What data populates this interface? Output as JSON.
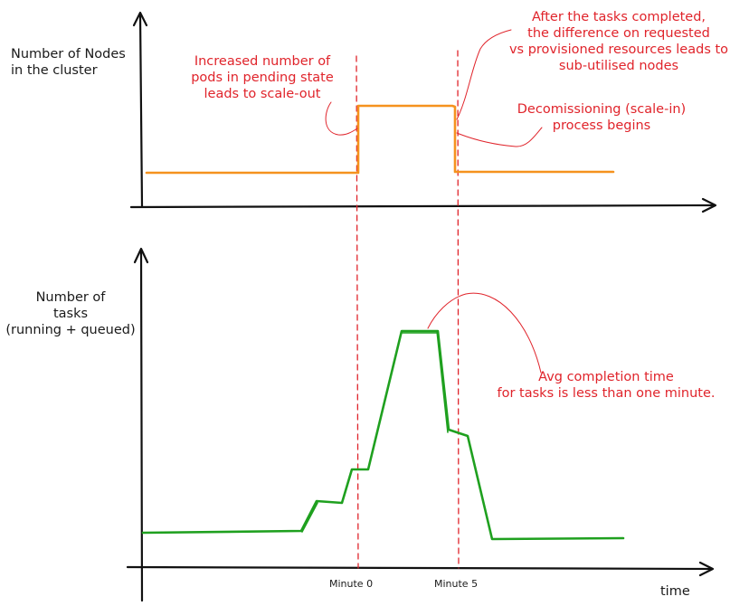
{
  "colors": {
    "axis": "#111111",
    "nodes_line": "#f5921e",
    "tasks_line": "#1fa01f",
    "annotation": "#e0242b"
  },
  "top_chart": {
    "ylabel_lines": [
      "Number of Nodes",
      "in the cluster"
    ],
    "annotation_scale_out": [
      "Increased number of",
      "pods in pending state",
      "leads to scale-out"
    ],
    "annotation_after_tasks": [
      "After the tasks completed,",
      "the difference on requested",
      "vs provisioned resources leads to",
      "sub-utilised nodes"
    ],
    "annotation_scale_in": [
      "Decomissioning (scale-in)",
      "process begins"
    ]
  },
  "bottom_chart": {
    "ylabel_lines": [
      "Number of",
      "tasks",
      "(running + queued)"
    ],
    "annotation_avg": [
      "Avg completion time",
      "for tasks is less than one minute."
    ],
    "tick_minute0": "Minute 0",
    "tick_minute5": "Minute 5",
    "xlabel": "time"
  }
}
